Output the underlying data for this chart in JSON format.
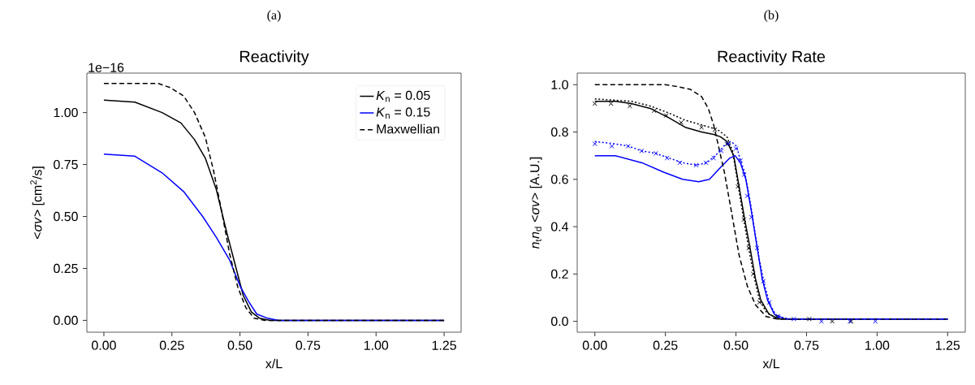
{
  "chart_data": [
    {
      "type": "line",
      "title": "Reactivity",
      "xlabel": "x/L",
      "ylabel": "<*σv*> [cm$^{2}$/s]",
      "annotations": [
        "(a)",
        "1e−16"
      ],
      "xlim": [
        -0.0625,
        1.3125
      ],
      "ylim": [
        -0.057,
        1.19
      ],
      "xticks": [
        {
          "value": 0,
          "label": "0.00"
        },
        {
          "value": 0.25,
          "label": "0.25"
        },
        {
          "value": 0.5,
          "label": "0.50"
        },
        {
          "value": 0.75,
          "label": "0.75"
        },
        {
          "value": 1,
          "label": "1.00"
        },
        {
          "value": 1.25,
          "label": "1.25"
        }
      ],
      "yticks": [
        {
          "value": 0,
          "label": "0.00"
        },
        {
          "value": 0.25,
          "label": "0.25"
        },
        {
          "value": 0.5,
          "label": "0.50"
        },
        {
          "value": 0.75,
          "label": "0.75"
        },
        {
          "value": 1,
          "label": "1.00"
        }
      ],
      "legend": "top right",
      "series": [
        {
          "name": "*K*$_{n}$ = 0.05",
          "color": "#000000",
          "line_style": "solid",
          "x": [
            0,
            0.114,
            0.214,
            0.283,
            0.333,
            0.373,
            0.413,
            0.452,
            0.482,
            0.512,
            0.542,
            0.572,
            0.611,
            1.25
          ],
          "values": [
            1.06,
            1.05,
            1.0,
            0.95,
            0.87,
            0.78,
            0.63,
            0.42,
            0.27,
            0.12,
            0.04,
            0.01,
            0,
            0
          ]
        },
        {
          "name": "*K*$_{n}$ = 0.15",
          "color": "#0000ff",
          "line_style": "solid",
          "x": [
            0,
            0.114,
            0.214,
            0.293,
            0.363,
            0.413,
            0.462,
            0.502,
            0.532,
            0.562,
            0.602,
            0.641,
            1.25
          ],
          "values": [
            0.8,
            0.79,
            0.71,
            0.62,
            0.5,
            0.4,
            0.29,
            0.16,
            0.09,
            0.03,
            0.01,
            0,
            0
          ]
        },
        {
          "name": "Maxwellian",
          "color": "#000000",
          "line_style": "dashed",
          "x": [
            0,
            0.2,
            0.244,
            0.293,
            0.333,
            0.373,
            0.403,
            0.432,
            0.462,
            0.492,
            0.522,
            0.552,
            0.592,
            1.25
          ],
          "values": [
            1.14,
            1.14,
            1.12,
            1.08,
            1.0,
            0.88,
            0.72,
            0.53,
            0.32,
            0.16,
            0.06,
            0.01,
            0,
            0
          ]
        }
      ]
    },
    {
      "type": "line",
      "title": "Reactivity Rate",
      "xlabel": "x/L",
      "ylabel": "*n*$_{t}$*n*$_{d}$ <*σv*> [A.U.]",
      "annotations": [
        "(b)"
      ],
      "xlim": [
        -0.0625,
        1.3125
      ],
      "ylim": [
        -0.046,
        1.049
      ],
      "xticks": [
        {
          "value": 0,
          "label": "0.00"
        },
        {
          "value": 0.25,
          "label": "0.25"
        },
        {
          "value": 0.5,
          "label": "0.50"
        },
        {
          "value": 0.75,
          "label": "0.75"
        },
        {
          "value": 1,
          "label": "1.00"
        },
        {
          "value": 1.25,
          "label": "1.25"
        }
      ],
      "yticks": [
        {
          "value": 0,
          "label": "0.0"
        },
        {
          "value": 0.2,
          "label": "0.2"
        },
        {
          "value": 0.4,
          "label": "0.4"
        },
        {
          "value": 0.6,
          "label": "0.6"
        },
        {
          "value": 0.8,
          "label": "0.8"
        },
        {
          "value": 1,
          "label": "1.0"
        }
      ],
      "series": [
        {
          "color": "#000000",
          "line_style": "solid",
          "x": [
            0,
            0.072,
            0.129,
            0.196,
            0.263,
            0.32,
            0.378,
            0.421,
            0.445,
            0.468,
            0.492,
            0.511,
            0.531,
            0.55,
            0.569,
            0.588,
            0.617,
            0.655,
            0.741,
            1.25
          ],
          "values": [
            0.93,
            0.93,
            0.92,
            0.9,
            0.86,
            0.82,
            0.8,
            0.79,
            0.78,
            0.76,
            0.7,
            0.57,
            0.43,
            0.31,
            0.18,
            0.09,
            0.03,
            0.01,
            0.01,
            0.01
          ]
        },
        {
          "color": "#0000ff",
          "line_style": "solid",
          "x": [
            0,
            0.072,
            0.167,
            0.244,
            0.311,
            0.368,
            0.406,
            0.445,
            0.478,
            0.497,
            0.516,
            0.535,
            0.554,
            0.574,
            0.593,
            0.612,
            0.636,
            0.674,
            0.741,
            1.25
          ],
          "values": [
            0.7,
            0.7,
            0.67,
            0.63,
            0.6,
            0.59,
            0.6,
            0.65,
            0.69,
            0.7,
            0.67,
            0.6,
            0.47,
            0.32,
            0.18,
            0.09,
            0.03,
            0.01,
            0.01,
            0.01
          ]
        },
        {
          "color": "#000000",
          "line_style": "dashed",
          "x": [
            0,
            0.25,
            0.301,
            0.339,
            0.378,
            0.402,
            0.421,
            0.44,
            0.459,
            0.483,
            0.511,
            0.54,
            0.569,
            0.607,
            0.645,
            1.25
          ],
          "values": [
            1.0,
            1.0,
            0.99,
            0.98,
            0.95,
            0.9,
            0.83,
            0.73,
            0.63,
            0.47,
            0.28,
            0.15,
            0.07,
            0.02,
            0.01,
            0.01
          ]
        },
        {
          "color": "#000000",
          "line_style": "dotted",
          "x": [
            0,
            0.129,
            0.196,
            0.263,
            0.32,
            0.378,
            0.435,
            0.468,
            0.488,
            0.507,
            0.526,
            0.545,
            0.564,
            0.583,
            0.607,
            0.645,
            0.741,
            1.25
          ],
          "values": [
            0.94,
            0.93,
            0.91,
            0.88,
            0.85,
            0.83,
            0.81,
            0.78,
            0.72,
            0.58,
            0.44,
            0.31,
            0.19,
            0.09,
            0.04,
            0.01,
            0.01,
            0.01
          ]
        },
        {
          "color": "#0000ff",
          "line_style": "dotted",
          "x": [
            0,
            0.072,
            0.12,
            0.167,
            0.215,
            0.263,
            0.311,
            0.359,
            0.397,
            0.435,
            0.464,
            0.483,
            0.502,
            0.516,
            0.531,
            0.55,
            0.564,
            0.583,
            0.602,
            0.621,
            0.645,
            0.693,
            1.25
          ],
          "values": [
            0.76,
            0.75,
            0.74,
            0.72,
            0.71,
            0.69,
            0.67,
            0.66,
            0.67,
            0.71,
            0.75,
            0.76,
            0.74,
            0.68,
            0.63,
            0.51,
            0.4,
            0.26,
            0.15,
            0.07,
            0.02,
            0.01,
            0.01
          ]
        },
        {
          "type": "scatter",
          "marker": "cross",
          "color": "#000000",
          "x": [
            0,
            0.057,
            0.124,
            0.21,
            0.253,
            0.306,
            0.378,
            0.425,
            0.468,
            0.507,
            0.528,
            0.545,
            0.561,
            0.583,
            0.645,
            0.76,
            0.841,
            0.908
          ],
          "values": [
            0.92,
            0.92,
            0.91,
            0.89,
            0.87,
            0.84,
            0.82,
            0.81,
            0.75,
            0.57,
            0.43,
            0.31,
            0.2,
            0.08,
            0.02,
            0.01,
            0,
            0
          ]
        },
        {
          "type": "scatter",
          "marker": "cross",
          "color": "#0000ff",
          "x": [
            0,
            0.06,
            0.118,
            0.166,
            0.216,
            0.256,
            0.301,
            0.359,
            0.394,
            0.421,
            0.448,
            0.472,
            0.5,
            0.516,
            0.529,
            0.54,
            0.555,
            0.575,
            0.597,
            0.618,
            0.65,
            0.705,
            0.803,
            0.904,
            0.994
          ],
          "values": [
            0.75,
            0.74,
            0.74,
            0.72,
            0.71,
            0.69,
            0.67,
            0.66,
            0.67,
            0.69,
            0.72,
            0.75,
            0.73,
            0.68,
            0.62,
            0.53,
            0.44,
            0.31,
            0.17,
            0.08,
            0.02,
            0.01,
            0,
            0,
            0
          ]
        }
      ]
    }
  ]
}
